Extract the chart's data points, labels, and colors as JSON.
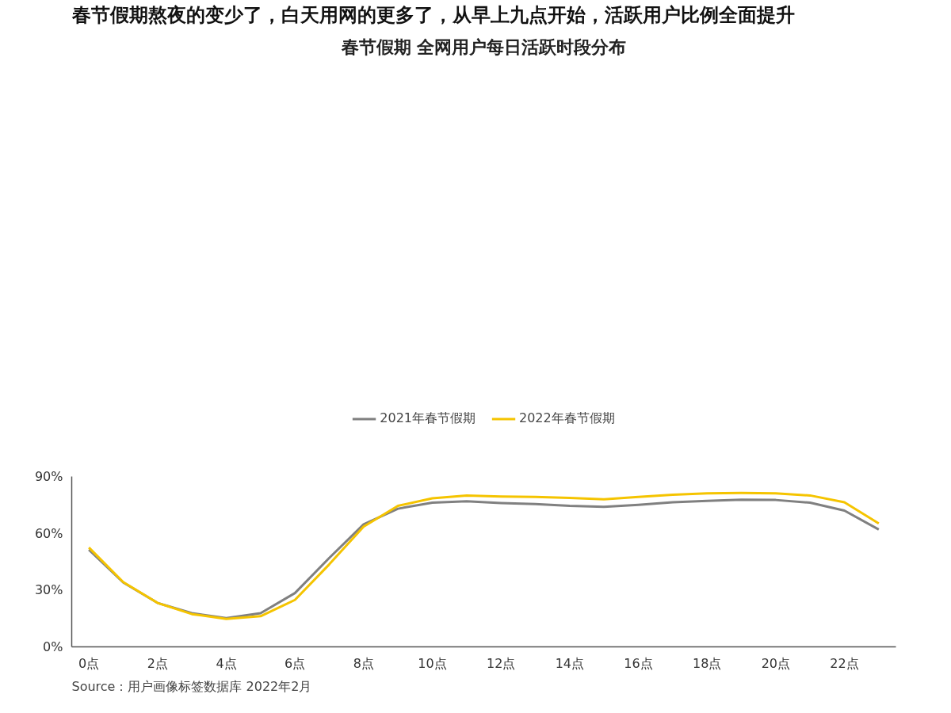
{
  "chart_data": {
    "type": "line",
    "title": "春节假期熬夜的变少了，白天用网的更多了，从早上九点开始，活跃用户比例全面提升",
    "subtitle": "春节假期 全网用户每日活跃时段分布",
    "categories": [
      "0点",
      null,
      "2点",
      null,
      "4点",
      null,
      "6点",
      null,
      "8点",
      null,
      "10点",
      null,
      "12点",
      null,
      "14点",
      null,
      "16点",
      null,
      "18点",
      null,
      "20点",
      null,
      "22点",
      null
    ],
    "series": [
      {
        "name": "2021年春节假期",
        "color": "#808080",
        "values": [
          51.3,
          34,
          23.2,
          17.8,
          15.2,
          17.8,
          28.4,
          47,
          64.7,
          73,
          76.2,
          76.9,
          76,
          75.5,
          74.5,
          74,
          75,
          76.4,
          77.1,
          77.8,
          77.6,
          76.2,
          72,
          62
        ]
      },
      {
        "name": "2022年春节假期",
        "color": "#f5c400",
        "values": [
          52.5,
          34.2,
          23.2,
          17.3,
          14.8,
          16.2,
          24.8,
          43.6,
          63.5,
          74.5,
          78.5,
          80,
          79.4,
          79.2,
          78.7,
          78,
          79.2,
          80.4,
          81.1,
          81.3,
          81.1,
          80,
          76.4,
          65.2
        ]
      }
    ],
    "ylim": [
      0,
      90
    ],
    "yticks": [
      {
        "value": 0,
        "label": "0%"
      },
      {
        "value": 30,
        "label": "30%"
      },
      {
        "value": 60,
        "label": "60%"
      },
      {
        "value": 90,
        "label": "90%"
      }
    ],
    "grid": false,
    "legend": "top",
    "marker": "none",
    "line_style": "solid",
    "annotations": [
      "Source：用户画像标签数据库 2022年2月"
    ]
  }
}
